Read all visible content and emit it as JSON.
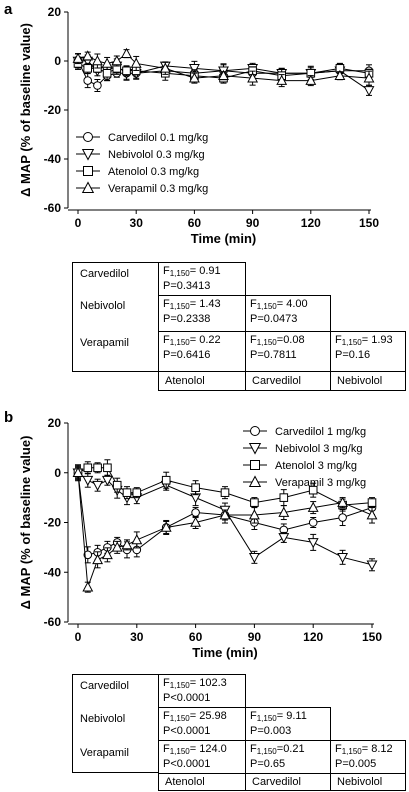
{
  "chart_data": [
    {
      "panel": "a",
      "type": "line",
      "ylabel": "Δ MAP (% of baseline value)",
      "xlabel": "Time (min)",
      "xlim": [
        0,
        150
      ],
      "ylim": [
        -60,
        20
      ],
      "xticks": [
        0,
        30,
        60,
        90,
        120,
        150
      ],
      "yticks": [
        20,
        0,
        -20,
        -40,
        -60
      ],
      "legend_position": "lower-left",
      "series": [
        {
          "name": "Carvedilol 0.1 mg/kg",
          "marker": "circle",
          "x": [
            0,
            5,
            10,
            15,
            20,
            25,
            30,
            45,
            60,
            75,
            90,
            105,
            120,
            135,
            150
          ],
          "y": [
            0,
            -8,
            -10,
            -6,
            -5,
            -5,
            -5,
            -4,
            -5,
            -4,
            -5,
            -5,
            -5,
            -4,
            -4
          ]
        },
        {
          "name": "Nebivolol 0.3 mg/kg",
          "marker": "triangle-down",
          "x": [
            0,
            5,
            10,
            15,
            20,
            25,
            30,
            45,
            60,
            75,
            90,
            105,
            120,
            135,
            150
          ],
          "y": [
            0,
            0,
            -4,
            -4,
            -2,
            -5,
            -5,
            -2,
            -3,
            -4,
            -3,
            -5,
            -5,
            -4,
            -12
          ]
        },
        {
          "name": "Atenolol 0.3 mg/kg",
          "marker": "square",
          "x": [
            0,
            5,
            10,
            15,
            20,
            25,
            30,
            45,
            60,
            75,
            90,
            105,
            120,
            135,
            150
          ],
          "y": [
            -1,
            -3,
            -3,
            -5,
            -3,
            -4,
            -4,
            -5,
            -6,
            -7,
            -4,
            -6,
            -5,
            -3,
            -5
          ]
        },
        {
          "name": "Verapamil 0.3 mg/kg",
          "marker": "triangle-up",
          "x": [
            0,
            5,
            10,
            15,
            20,
            25,
            30,
            45,
            60,
            75,
            90,
            105,
            120,
            135,
            150
          ],
          "y": [
            1,
            2,
            0,
            -1,
            0,
            3,
            -1,
            -3,
            -7,
            -6,
            -7,
            -8,
            -8,
            -6,
            -7
          ]
        }
      ]
    },
    {
      "panel": "b",
      "type": "line",
      "ylabel": "Δ MAP (% of baseline value)",
      "xlabel": "Time (min)",
      "xlim": [
        0,
        150
      ],
      "ylim": [
        -60,
        20
      ],
      "xticks": [
        0,
        30,
        60,
        90,
        120,
        150
      ],
      "yticks": [
        20,
        0,
        -20,
        -40,
        -60
      ],
      "legend_position": "top-right",
      "series": [
        {
          "name": "Carvedilol 1 mg/kg",
          "marker": "circle",
          "x": [
            0,
            5,
            10,
            15,
            20,
            25,
            30,
            45,
            60,
            75,
            90,
            105,
            120,
            135,
            150
          ],
          "y": [
            0,
            -33,
            -32,
            -30,
            -28,
            -31,
            -31,
            -22,
            -16,
            -17,
            -20,
            -23,
            -20,
            -18,
            -14
          ]
        },
        {
          "name": "Nebivolol 3 mg/kg",
          "marker": "triangle-down",
          "x": [
            0,
            5,
            10,
            15,
            20,
            25,
            30,
            45,
            60,
            75,
            90,
            105,
            120,
            135,
            150
          ],
          "y": [
            0,
            -3,
            -5,
            -3,
            -7,
            -10,
            -10,
            -5,
            -10,
            -15,
            -34,
            -26,
            -28,
            -34,
            -37
          ]
        },
        {
          "name": "Atenolol 3 mg/kg",
          "marker": "square",
          "x": [
            0,
            5,
            10,
            15,
            20,
            25,
            30,
            45,
            60,
            75,
            90,
            105,
            120,
            135,
            150
          ],
          "y": [
            0,
            2,
            2,
            2,
            -5,
            -8,
            -8,
            -3,
            -6,
            -8,
            -12,
            -10,
            -7,
            -13,
            -12
          ]
        },
        {
          "name": "Verapamil 3 mg/kg",
          "marker": "triangle-up",
          "x": [
            0,
            5,
            10,
            15,
            20,
            25,
            30,
            45,
            60,
            75,
            90,
            105,
            120,
            135,
            150
          ],
          "y": [
            0,
            -46,
            -35,
            -33,
            -30,
            -29,
            -27,
            -22,
            -20,
            -17,
            -17,
            -16,
            -14,
            -12,
            -17
          ]
        }
      ]
    }
  ],
  "panels": {
    "a": {
      "label": "a"
    },
    "b": {
      "label": "b"
    }
  },
  "stats_a": {
    "rows": [
      "Carvedilol",
      "Nebivolol",
      "Verapamil"
    ],
    "cols": [
      "Atenolol",
      "Carvedilol",
      "Nebivolol"
    ],
    "cells": {
      "r0c0": {
        "f": "= 0.91",
        "p": "P=0.3413"
      },
      "r1c0": {
        "f": "= 1.43",
        "p": "P=0.2338"
      },
      "r1c1": {
        "f": "= 4.00",
        "p": "P=0.0473"
      },
      "r2c0": {
        "f": "= 0.22",
        "p": "P=0.6416"
      },
      "r2c1": {
        "f": "=0.08",
        "p": "P=0.7811"
      },
      "r2c2": {
        "f": "= 1.93",
        "p": "P=0.16"
      }
    }
  },
  "stats_b": {
    "rows": [
      "Carvedilol",
      "Nebivolol",
      "Verapamil"
    ],
    "cols": [
      "Atenolol",
      "Carvedilol",
      "Nebivolol"
    ],
    "cells": {
      "r0c0": {
        "f": "= 102.3",
        "p": "P<0.0001"
      },
      "r1c0": {
        "f": "= 25.98",
        "p": "P<0.0001"
      },
      "r1c1": {
        "f": "= 9.11",
        "p": "P=0.003"
      },
      "r2c0": {
        "f": "= 124.0",
        "p": "P<0.0001"
      },
      "r2c1": {
        "f": "=0.21",
        "p": "P=0.65"
      },
      "r2c2": {
        "f": "= 8.12",
        "p": "P=0.005"
      }
    }
  },
  "f_symbol": "F",
  "f_sub": "1,150"
}
